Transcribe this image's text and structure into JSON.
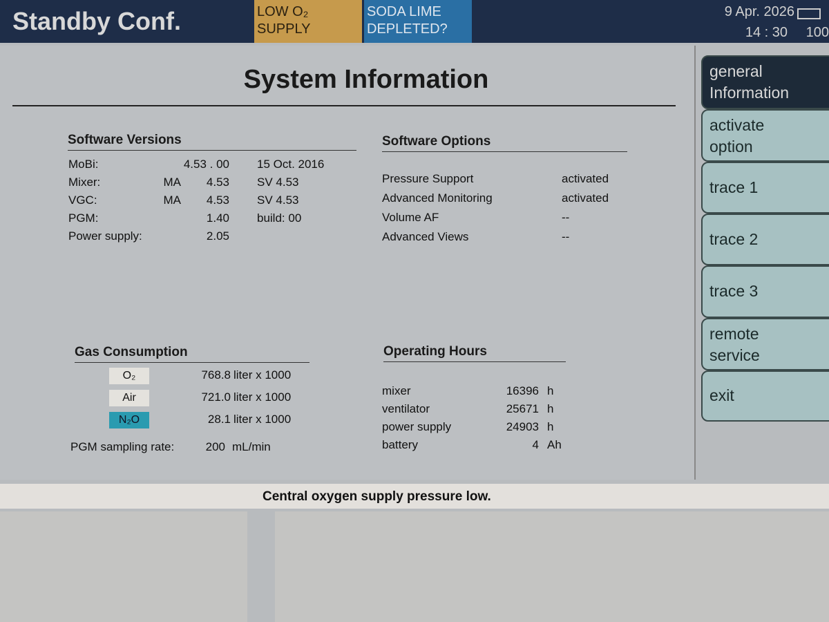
{
  "header": {
    "mode": "Standby Conf.",
    "alarms": [
      {
        "line1": "LOW O₂",
        "line2": "SUPPLY",
        "color": "#c69a4c"
      },
      {
        "line1": "SODA LIME",
        "line2": "DEPLETED?",
        "color": "#2a6fa4"
      }
    ],
    "date": "9 Apr. 2026",
    "time": "14 : 30",
    "battery": "100"
  },
  "main": {
    "title": "System Information",
    "software_versions": {
      "heading": "Software Versions",
      "rows": [
        {
          "label": "MoBi:",
          "prefix": "",
          "value": "4.53 . 00",
          "extra": "15  Oct.  2016"
        },
        {
          "label": "Mixer:",
          "prefix": "MA",
          "value": "4.53",
          "extra": "SV  4.53"
        },
        {
          "label": "VGC:",
          "prefix": "MA",
          "value": "4.53",
          "extra": "SV  4.53"
        },
        {
          "label": "PGM:",
          "prefix": "",
          "value": "1.40",
          "extra": "build:  00"
        },
        {
          "label": "Power supply:",
          "prefix": "",
          "value": "2.05",
          "extra": ""
        }
      ]
    },
    "software_options": {
      "heading": "Software Options",
      "rows": [
        {
          "label": "Pressure Support",
          "value": "activated"
        },
        {
          "label": "Advanced Monitoring",
          "value": "activated"
        },
        {
          "label": "Volume AF",
          "value": "--"
        },
        {
          "label": "Advanced Views",
          "value": "--"
        }
      ]
    },
    "gas_consumption": {
      "heading": "Gas Consumption",
      "rows": [
        {
          "gas": "O₂",
          "value": "768.8",
          "unit": "liter x 1000",
          "color": "#e4e2dd"
        },
        {
          "gas": "Air",
          "value": "721.0",
          "unit": "liter x 1000",
          "color": "#e4e2dd"
        },
        {
          "gas": "N₂O",
          "value": "28.1",
          "unit": "liter x 1000",
          "color": "#2a9bb0"
        }
      ],
      "sampling_label": "PGM sampling rate:",
      "sampling_value": "200",
      "sampling_unit": "mL/min"
    },
    "operating_hours": {
      "heading": "Operating Hours",
      "rows": [
        {
          "label": "mixer",
          "value": "16396",
          "unit": "h"
        },
        {
          "label": "ventilator",
          "value": "25671",
          "unit": "h"
        },
        {
          "label": "power supply",
          "value": "24903",
          "unit": "h"
        },
        {
          "label": "battery",
          "value": "4",
          "unit": "Ah"
        }
      ]
    }
  },
  "sidebar": {
    "items": [
      {
        "label": "general Information",
        "active": true
      },
      {
        "label": "activate option"
      },
      {
        "label": "trace 1"
      },
      {
        "label": "trace 2"
      },
      {
        "label": "trace 3"
      },
      {
        "label": "remote service"
      },
      {
        "label": "exit"
      }
    ]
  },
  "message": "Central oxygen supply pressure low."
}
